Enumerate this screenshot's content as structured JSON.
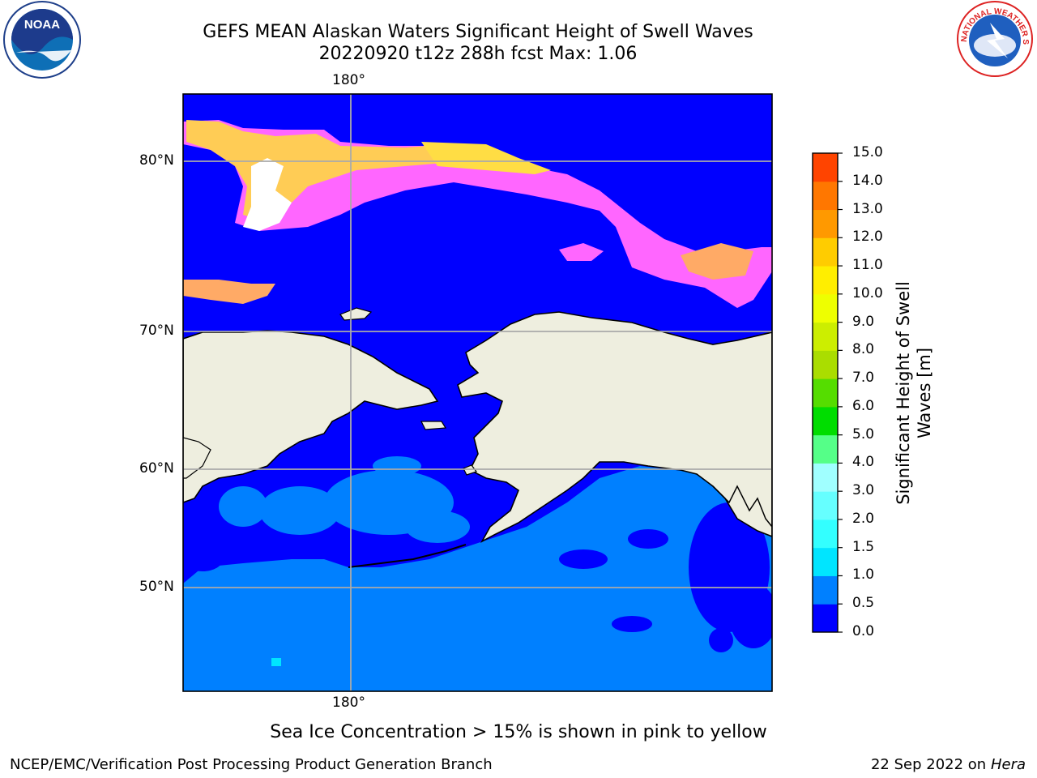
{
  "title_line1": "GEFS MEAN Alaskan Waters Significant Height of Swell Waves",
  "title_line2": "20220920 t12z 288h fcst   Max: 1.06",
  "logos": {
    "left": "noaa-logo",
    "left_text": "NOAA",
    "right": "nws-logo",
    "right_text": "NATIONAL WEATHER SERVICE"
  },
  "map": {
    "lon_label_top": "180°",
    "lon_label_bottom": "180°",
    "lat_labels": [
      "80°N",
      "70°N",
      "60°N",
      "50°N"
    ],
    "colors": {
      "land": "#eeeedf",
      "ocean_low": "#0000ff",
      "ocean_mid": "#0080ff",
      "ice_pink": "#ff66ff",
      "ice_yellow": "#ffdd44",
      "grid": "#aaaaaa"
    }
  },
  "colorbar": {
    "title_line1": "Significant Height of Swell",
    "title_line2": "Waves [m]",
    "ticks": [
      "15.0",
      "14.0",
      "13.0",
      "12.0",
      "11.0",
      "10.0",
      "9.0",
      "8.0",
      "7.0",
      "6.0",
      "5.0",
      "4.0",
      "3.0",
      "2.0",
      "1.5",
      "1.0",
      "0.5",
      "0.0"
    ],
    "colors": [
      "#0000ff",
      "#0080ff",
      "#00e5ff",
      "#33ffff",
      "#66ffff",
      "#a0ffff",
      "#55ff88",
      "#00dd00",
      "#55dd00",
      "#aadd00",
      "#ccee00",
      "#eeff00",
      "#ffee00",
      "#ffcc00",
      "#ff9900",
      "#ff7700",
      "#ff4400",
      "#ff1a00",
      "#ff0000"
    ]
  },
  "sea_ice_note": "Sea Ice Concentration > 15% is shown in pink to yellow",
  "footer_left": "NCEP/EMC/Verification Post Processing Product Generation Branch",
  "footer_date": "22 Sep 2022 on",
  "footer_machine": "Hera"
}
